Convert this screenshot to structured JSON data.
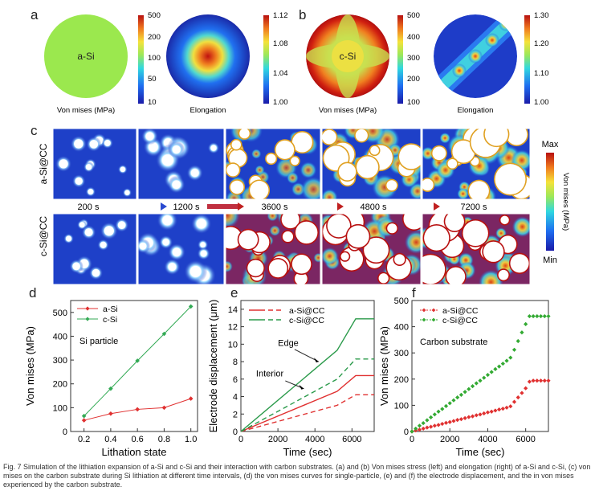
{
  "panel_letters": [
    "a",
    "b",
    "c",
    "d",
    "e",
    "f"
  ],
  "panel_a": {
    "left_label": "a-Si",
    "left_caption": "Von mises (MPa)",
    "left_ticks": [
      "500",
      "200",
      "100",
      "50",
      "10"
    ],
    "right_caption": "Elongation",
    "right_ticks": [
      "1.12",
      "1.08",
      "1.04",
      "1.00"
    ]
  },
  "panel_b": {
    "left_label": "c-Si",
    "left_caption": "Von mises (MPa)",
    "left_ticks": [
      "500",
      "400",
      "300",
      "200",
      "100"
    ],
    "right_caption": "Elongation",
    "right_ticks": [
      "1.30",
      "1.20",
      "1.10",
      "1.00"
    ]
  },
  "panel_c": {
    "row_labels": [
      "a-Si@CC",
      "c-Si@CC"
    ],
    "times": [
      "200 s",
      "1200 s",
      "3600 s",
      "4800 s",
      "7200 s"
    ],
    "colorbar_max": "Max",
    "colorbar_min": "Min",
    "colorbar_label": "Von mises (MPa)"
  },
  "chart_data": [
    {
      "type": "line",
      "panel": "d",
      "title": "Si particle",
      "xlabel": "Lithation state",
      "ylabel": "Von mises (MPa)",
      "xlim": [
        0.1,
        1.05
      ],
      "ylim": [
        0,
        550
      ],
      "xticks": [
        0.2,
        0.4,
        0.6,
        0.8,
        1.0
      ],
      "yticks": [
        0,
        100,
        200,
        300,
        400,
        500
      ],
      "legend": "top-left",
      "series": [
        {
          "name": "a-Si",
          "color": "#e03030",
          "marker": "diamond",
          "x": [
            0.2,
            0.4,
            0.6,
            0.8,
            1.0
          ],
          "y": [
            47,
            75,
            93,
            100,
            138
          ]
        },
        {
          "name": "c-Si",
          "color": "#33aa55",
          "marker": "diamond",
          "x": [
            0.2,
            0.4,
            0.6,
            0.8,
            1.0
          ],
          "y": [
            65,
            180,
            297,
            410,
            525
          ]
        }
      ]
    },
    {
      "type": "line",
      "panel": "e",
      "xlabel": "Time (sec)",
      "ylabel": "Electrode displacement (μm)",
      "xlim": [
        0,
        7200
      ],
      "ylim": [
        0,
        15
      ],
      "xticks": [
        0,
        2000,
        4000,
        6000
      ],
      "yticks": [
        0,
        2,
        4,
        6,
        8,
        10,
        12,
        14
      ],
      "legend": "top-left",
      "legend_entries": [
        "a-Si@CC",
        "c-Si@CC"
      ],
      "annotations": [
        "Edge",
        "Interior"
      ],
      "series": [
        {
          "name": "a-Si@CC edge",
          "color": "#e03030",
          "dash": false,
          "x": [
            0,
            5200,
            6200,
            7200
          ],
          "y": [
            0,
            4.6,
            6.4,
            6.4
          ]
        },
        {
          "name": "a-Si@CC interior",
          "color": "#e03030",
          "dash": true,
          "x": [
            0,
            5200,
            6200,
            7200
          ],
          "y": [
            0,
            3.0,
            4.2,
            4.2
          ]
        },
        {
          "name": "c-Si@CC edge",
          "color": "#2a9a4a",
          "dash": false,
          "x": [
            0,
            5200,
            6200,
            7200
          ],
          "y": [
            0,
            9.3,
            12.9,
            12.9
          ]
        },
        {
          "name": "c-Si@CC interior",
          "color": "#2a9a4a",
          "dash": true,
          "x": [
            0,
            5200,
            6200,
            7200
          ],
          "y": [
            0,
            6.0,
            8.3,
            8.3
          ]
        }
      ]
    },
    {
      "type": "scatter",
      "panel": "f",
      "title": "Carbon substrate",
      "xlabel": "Time (sec)",
      "ylabel": "Von mises (MPa)",
      "xlim": [
        0,
        7200
      ],
      "ylim": [
        0,
        500
      ],
      "xticks": [
        0,
        2000,
        4000,
        6000
      ],
      "yticks": [
        0,
        100,
        200,
        300,
        400,
        500
      ],
      "legend": "top-left",
      "series": [
        {
          "name": "a-Si@CC",
          "color": "#e03030",
          "marker": "diamond",
          "x": [
            0,
            200,
            400,
            600,
            800,
            1000,
            1200,
            1400,
            1600,
            1800,
            2000,
            2200,
            2400,
            2600,
            2800,
            3000,
            3200,
            3400,
            3600,
            3800,
            4000,
            4200,
            4400,
            4600,
            4800,
            5000,
            5200,
            5400,
            5600,
            5800,
            6000,
            6200,
            6400,
            6600,
            6800,
            7000,
            7200
          ],
          "y": [
            0,
            4,
            7,
            11,
            15,
            18,
            22,
            25,
            29,
            33,
            36,
            40,
            44,
            47,
            51,
            55,
            58,
            62,
            65,
            69,
            73,
            76,
            80,
            84,
            87,
            91,
            96,
            113,
            130,
            147,
            165,
            190,
            194,
            194,
            194,
            194,
            194
          ]
        },
        {
          "name": "c-Si@CC",
          "color": "#33aa33",
          "marker": "diamond",
          "x": [
            0,
            200,
            400,
            600,
            800,
            1000,
            1200,
            1400,
            1600,
            1800,
            2000,
            2200,
            2400,
            2600,
            2800,
            3000,
            3200,
            3400,
            3600,
            3800,
            4000,
            4200,
            4400,
            4600,
            4800,
            5000,
            5200,
            5400,
            5600,
            5800,
            6000,
            6200,
            6400,
            6600,
            6800,
            7000,
            7200
          ],
          "y": [
            0,
            11,
            22,
            32,
            43,
            54,
            65,
            76,
            86,
            97,
            108,
            119,
            130,
            140,
            151,
            162,
            173,
            184,
            194,
            205,
            216,
            227,
            238,
            248,
            259,
            270,
            282,
            312,
            345,
            378,
            410,
            440,
            440,
            440,
            440,
            440,
            440
          ]
        }
      ]
    }
  ],
  "caption": "Fig. 7   Simulation of the lithiation expansion of a-Si and c-Si and their interaction with carbon substrates. (a) and (b) Von mises stress (left) and elongation (right) of a-Si and c-Si, (c) von mises on the carbon substrate during Si lithiation at different time intervals, (d) the von mises curves for single-particle, (e) and (f) the electrode displacement, and the in von mises experienced by the carbon substrate."
}
